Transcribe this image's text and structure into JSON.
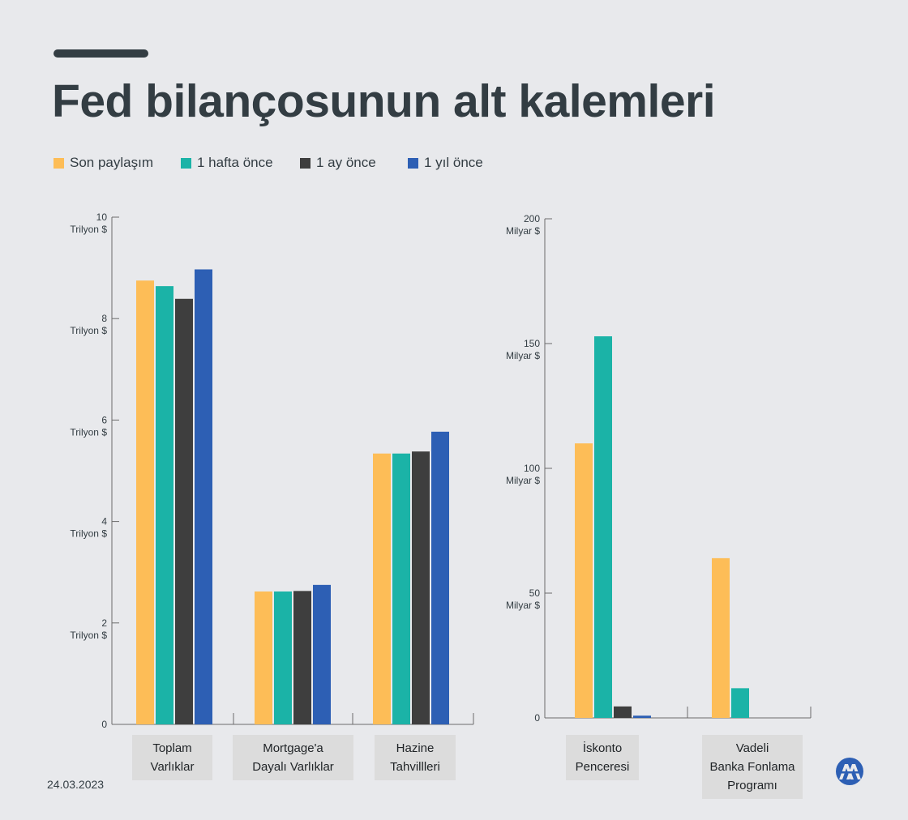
{
  "title": "Fed bilançosunun alt kalemleri",
  "legend": [
    {
      "label": "Son paylaşım",
      "color": "#fdbd57"
    },
    {
      "label": "1 hafta önce",
      "color": "#1bb3a7"
    },
    {
      "label": "1 ay önce",
      "color": "#3e3e3e"
    },
    {
      "label": "1 yıl önce",
      "color": "#2d5fb4"
    }
  ],
  "date": "24.03.2023",
  "logo_text": "AA",
  "chart_data": [
    {
      "type": "bar",
      "unit": "Trilyon $",
      "ylim": [
        0,
        10
      ],
      "yticks": [
        {
          "value": 0,
          "label": "0",
          "unit": ""
        },
        {
          "value": 2,
          "label": "2",
          "unit": "Trilyon $"
        },
        {
          "value": 4,
          "label": "4",
          "unit": "Trilyon $"
        },
        {
          "value": 6,
          "label": "6",
          "unit": "Trilyon $"
        },
        {
          "value": 8,
          "label": "8",
          "unit": "Trilyon $"
        },
        {
          "value": 10,
          "label": "10",
          "unit": "Trilyon $"
        }
      ],
      "categories": [
        [
          "Toplam",
          "Varlıklar"
        ],
        [
          "Mortgage'a",
          "Dayalı Varlıklar"
        ],
        [
          "Hazine",
          "Tahvillleri"
        ]
      ],
      "series": [
        {
          "name": "Son paylaşım",
          "values": [
            8.75,
            2.62,
            5.34
          ]
        },
        {
          "name": "1 hafta önce",
          "values": [
            8.64,
            2.62,
            5.34
          ]
        },
        {
          "name": "1 ay önce",
          "values": [
            8.39,
            2.63,
            5.38
          ]
        },
        {
          "name": "1 yıl önce",
          "values": [
            8.97,
            2.75,
            5.77
          ]
        }
      ]
    },
    {
      "type": "bar",
      "unit": "Milyar $",
      "ylim": [
        0,
        200
      ],
      "yticks": [
        {
          "value": 0,
          "label": "0",
          "unit": ""
        },
        {
          "value": 50,
          "label": "50",
          "unit": "Milyar $"
        },
        {
          "value": 100,
          "label": "100",
          "unit": "Milyar $"
        },
        {
          "value": 150,
          "label": "150",
          "unit": "Milyar $"
        },
        {
          "value": 200,
          "label": "200",
          "unit": "Milyar $"
        }
      ],
      "categories": [
        [
          "İskonto",
          "Penceresi"
        ],
        [
          "Vadeli",
          "Banka Fonlama",
          "Programı"
        ]
      ],
      "series": [
        {
          "name": "Son paylaşım",
          "values": [
            110,
            64
          ]
        },
        {
          "name": "1 hafta önce",
          "values": [
            152.9,
            11.9
          ]
        },
        {
          "name": "1 ay önce",
          "values": [
            4.6,
            0
          ]
        },
        {
          "name": "1 yıl önce",
          "values": [
            0.9,
            0
          ]
        }
      ]
    }
  ]
}
